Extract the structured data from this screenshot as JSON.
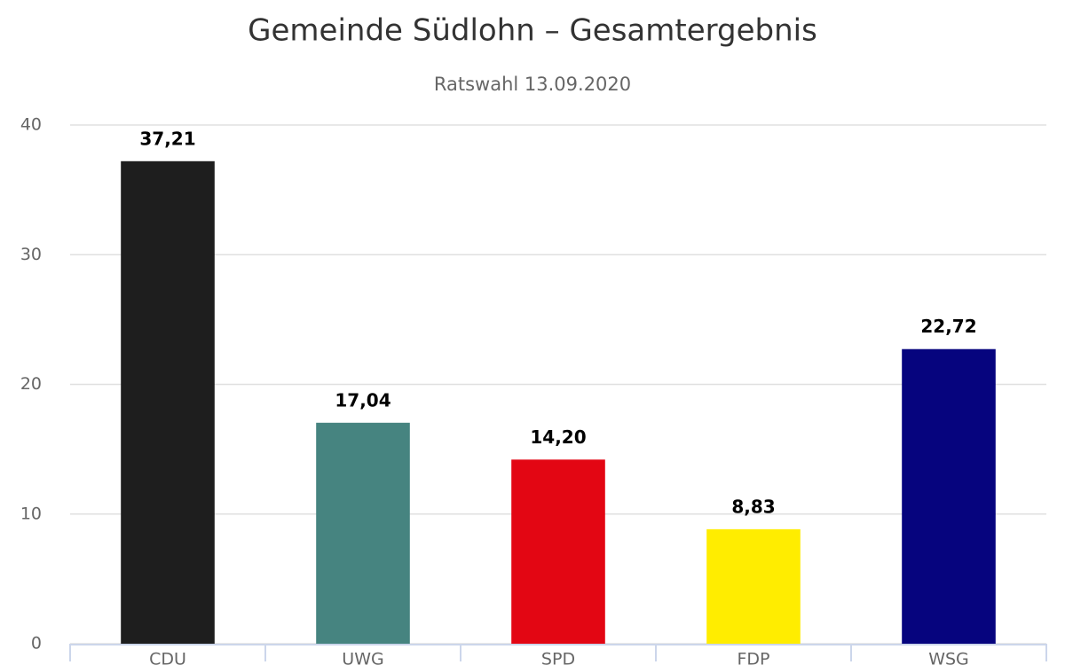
{
  "chart_data": {
    "type": "bar",
    "title": "Gemeinde Südlohn – Gesamtergebnis",
    "subtitle": "Ratswahl 13.09.2020",
    "categories": [
      "CDU",
      "UWG",
      "SPD",
      "FDP",
      "WSG"
    ],
    "values": [
      37.21,
      17.04,
      14.2,
      8.83,
      22.72
    ],
    "value_labels": [
      "37,21",
      "17,04",
      "14,20",
      "8,83",
      "22,72"
    ],
    "colors": [
      "#1e1e1e",
      "#468480",
      "#e30613",
      "#ffed00",
      "#06047e"
    ],
    "ylim": [
      0,
      40
    ],
    "yticks": [
      0,
      10,
      20,
      30,
      40
    ],
    "grid": true
  }
}
